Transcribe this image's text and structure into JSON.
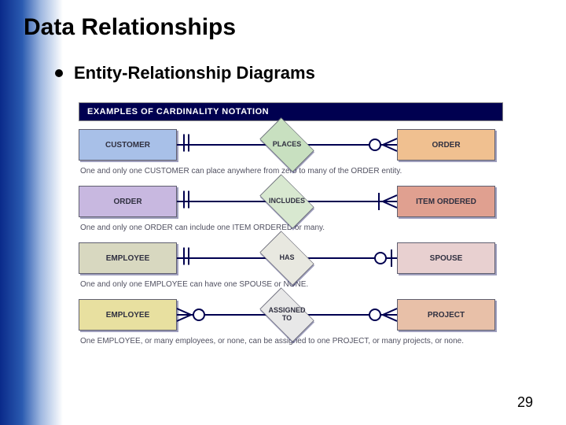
{
  "slide": {
    "title": "Data Relationships",
    "subtitle": "Entity-Relationship Diagrams",
    "page_number": "29",
    "gradient_colors": [
      "#0a2a8a",
      "#2a5ab0",
      "#9fb8e0",
      "#ffffff"
    ]
  },
  "figure": {
    "type": "er-diagram",
    "header": "EXAMPLES OF CARDINALITY NOTATION",
    "header_bg": "#000050",
    "header_fg": "#ffffff",
    "entity_border": "#606070",
    "entity_text_color": "#303040",
    "line_color": "#000050",
    "shadow_color": "#00005060",
    "caption_color": "#505060",
    "fonts": {
      "body_pt": 10,
      "header_pt": 11,
      "caption_pt": 10
    },
    "rows": [
      {
        "left": {
          "label": "CUSTOMER",
          "fill": "#a8c0e8"
        },
        "rel": {
          "label": "PLACES",
          "fill": "#c8e0c0"
        },
        "right": {
          "label": "ORDER",
          "fill": "#f0c090"
        },
        "left_notation": "one-and-only-one",
        "right_notation": "zero-or-many",
        "caption": "One and only one CUSTOMER can place anywhere from zero to many of the ORDER entity."
      },
      {
        "left": {
          "label": "ORDER",
          "fill": "#c8b8e0"
        },
        "rel": {
          "label": "INCLUDES",
          "fill": "#d8e8d0"
        },
        "right": {
          "label": "ITEM ORDERED",
          "fill": "#e0a090"
        },
        "left_notation": "one-and-only-one",
        "right_notation": "one-or-many",
        "caption": "One and only one ORDER can include one ITEM ORDERED or many."
      },
      {
        "left": {
          "label": "EMPLOYEE",
          "fill": "#d8d8c0"
        },
        "rel": {
          "label": "HAS",
          "fill": "#e8e8e0"
        },
        "right": {
          "label": "SPOUSE",
          "fill": "#e8d0d0"
        },
        "left_notation": "one-and-only-one",
        "right_notation": "zero-or-one",
        "caption": "One and only one EMPLOYEE can have one SPOUSE or NONE."
      },
      {
        "left": {
          "label": "EMPLOYEE",
          "fill": "#e8e0a0"
        },
        "rel": {
          "label": "ASSIGNED TO",
          "fill": "#e8e8e8"
        },
        "right": {
          "label": "PROJECT",
          "fill": "#e8c0a8"
        },
        "left_notation": "zero-or-many-left",
        "right_notation": "zero-or-many",
        "caption": "One EMPLOYEE, or many employees, or none, can be assigned to one PROJECT, or many projects, or none."
      }
    ]
  }
}
